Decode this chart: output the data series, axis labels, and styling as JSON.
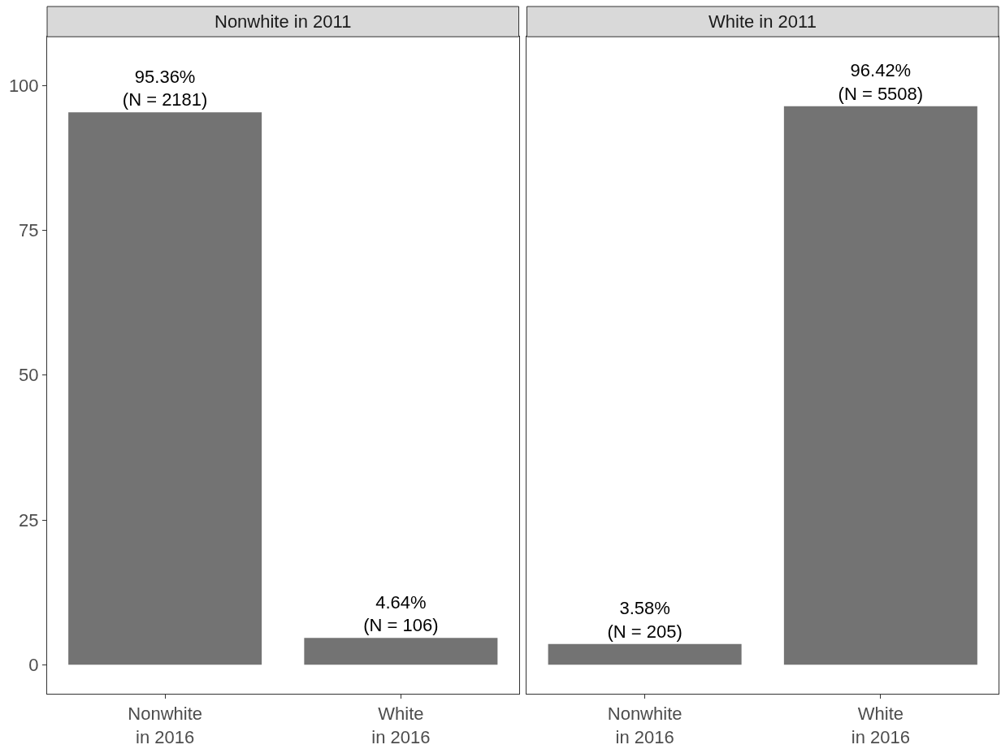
{
  "chart_data": [
    {
      "type": "bar",
      "title": "Nonwhite in 2011",
      "categories": [
        "Nonwhite\nin 2016",
        "White\nin 2016"
      ],
      "values": [
        95.36,
        4.64
      ],
      "value_labels": [
        "95.36%\n(N = 2181)",
        "4.64%\n(N = 106)"
      ],
      "color": "#737373",
      "ylim": [
        -5,
        108.4
      ],
      "yticks": [
        0,
        25,
        50,
        75,
        100
      ]
    },
    {
      "type": "bar",
      "title": "White in 2011",
      "categories": [
        "Nonwhite\nin 2016",
        "White\nin 2016"
      ],
      "values": [
        3.58,
        96.42
      ],
      "value_labels": [
        "3.58%\n(N = 205)",
        "96.42%\n(N = 5508)"
      ],
      "color": "#737373",
      "ylim": [
        -5,
        108.4
      ],
      "yticks": [
        0,
        25,
        50,
        75,
        100
      ],
      "tick_labels": "x"
    }
  ]
}
